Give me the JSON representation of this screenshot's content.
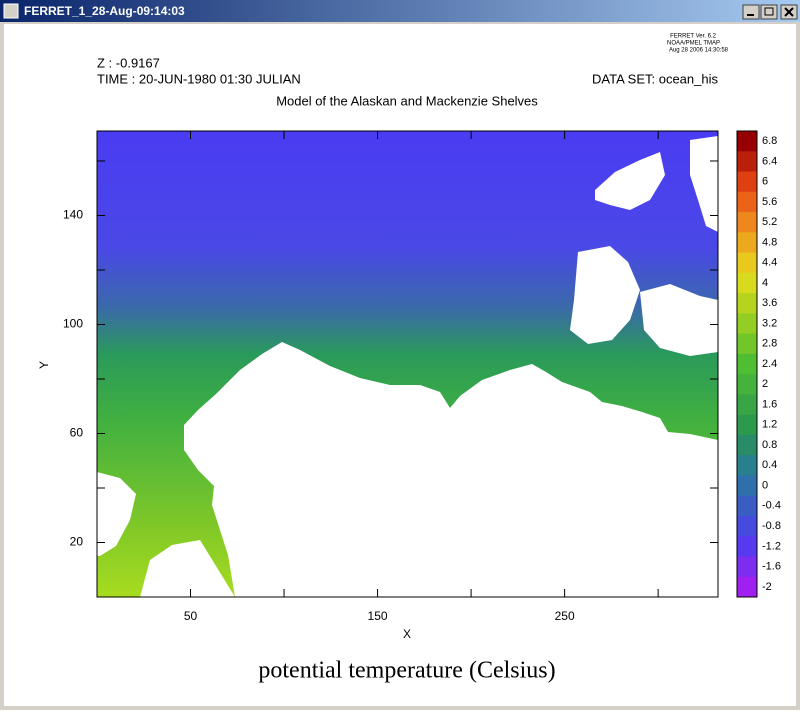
{
  "window": {
    "title": "FERRET_1_28-Aug-09:14:03"
  },
  "chart_data": {
    "type": "heatmap",
    "title": "Model of the Alaskan and Mackenzie Shelves",
    "header": {
      "z": "Z : -0.9167",
      "time": "TIME : 20-JUN-1980 01:30 JULIAN",
      "dataset": "DATA SET: ocean_his",
      "stamp": [
        "FERRET Ver. 6.2",
        "NOAA/PMEL TMAP",
        "Aug 28 2006 14:30:58"
      ]
    },
    "xlabel": "X",
    "ylabel": "Y",
    "xlim": [
      0,
      332
    ],
    "ylim": [
      0,
      171
    ],
    "xticks": [
      50,
      150,
      250
    ],
    "xminorticks": [
      100,
      200,
      300
    ],
    "yticks": [
      20,
      60,
      100,
      140
    ],
    "yminorticks": [
      40,
      80,
      120,
      160
    ],
    "colorbar": {
      "label": "potential temperature (Celsius)",
      "levels": [
        6.8,
        6.4,
        6,
        5.6,
        5.2,
        4.8,
        4.4,
        4,
        3.6,
        3.2,
        2.8,
        2.4,
        2,
        1.6,
        1.2,
        0.8,
        0.4,
        0,
        -0.4,
        -0.8,
        -1.2,
        -1.6,
        -2
      ]
    }
  }
}
